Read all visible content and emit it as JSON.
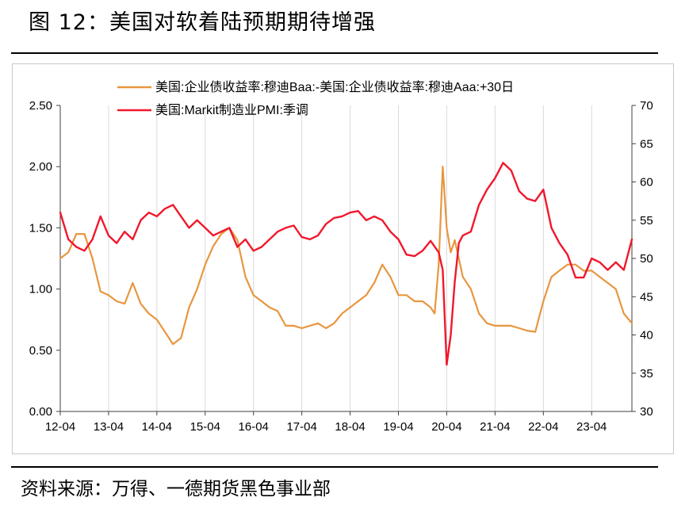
{
  "header": {
    "title": "图 12：美国对软着陆预期期待增强"
  },
  "footer": {
    "source": "资料来源：万得、一德期货黑色事业部"
  },
  "colors": {
    "spread": "#E8963F",
    "pmi": "#F0182C",
    "axis": "#404040"
  },
  "chart_data": {
    "type": "line",
    "title": "",
    "x_axis": {
      "tick_labels": [
        "12-04",
        "13-04",
        "14-04",
        "15-04",
        "16-04",
        "17-04",
        "18-04",
        "19-04",
        "20-04",
        "21-04",
        "22-04",
        "23-04"
      ],
      "range": [
        "2012-04",
        "2024-02"
      ]
    },
    "y_left": {
      "range": [
        0,
        2.5
      ],
      "ticks": [
        "0.00",
        "0.50",
        "1.00",
        "1.50",
        "2.00",
        "2.50"
      ]
    },
    "y_right": {
      "range": [
        30,
        70
      ],
      "ticks": [
        "30",
        "35",
        "40",
        "45",
        "50",
        "55",
        "60",
        "65",
        "70"
      ]
    },
    "legend": {
      "placement": "top-center"
    },
    "grid": {
      "vertical": true,
      "horizontal": false
    },
    "series": [
      {
        "name": "美国:企业债收益率:穆迪Baa:-美国:企业债收益率:穆迪Aaa:+30日",
        "axis": "left",
        "x": [
          "2012-04",
          "2012-06",
          "2012-08",
          "2012-10",
          "2012-12",
          "2013-02",
          "2013-04",
          "2013-06",
          "2013-08",
          "2013-10",
          "2013-12",
          "2014-02",
          "2014-04",
          "2014-06",
          "2014-08",
          "2014-10",
          "2014-12",
          "2015-02",
          "2015-04",
          "2015-06",
          "2015-08",
          "2015-10",
          "2015-12",
          "2016-02",
          "2016-04",
          "2016-06",
          "2016-08",
          "2016-10",
          "2016-12",
          "2017-02",
          "2017-04",
          "2017-06",
          "2017-08",
          "2017-10",
          "2017-12",
          "2018-02",
          "2018-04",
          "2018-06",
          "2018-08",
          "2018-10",
          "2018-12",
          "2019-02",
          "2019-04",
          "2019-06",
          "2019-08",
          "2019-10",
          "2019-12",
          "2020-01",
          "2020-02",
          "2020-03",
          "2020-04",
          "2020-05",
          "2020-06",
          "2020-07",
          "2020-08",
          "2020-10",
          "2020-12",
          "2021-02",
          "2021-04",
          "2021-06",
          "2021-08",
          "2021-10",
          "2021-12",
          "2022-02",
          "2022-04",
          "2022-06",
          "2022-08",
          "2022-10",
          "2022-12",
          "2023-02",
          "2023-04",
          "2023-06",
          "2023-08",
          "2023-10",
          "2023-12",
          "2024-02"
        ],
        "values": [
          1.25,
          1.3,
          1.45,
          1.45,
          1.25,
          0.98,
          0.95,
          0.9,
          0.88,
          1.05,
          0.88,
          0.8,
          0.75,
          0.65,
          0.55,
          0.6,
          0.85,
          1.0,
          1.2,
          1.35,
          1.45,
          1.5,
          1.4,
          1.1,
          0.95,
          0.9,
          0.85,
          0.82,
          0.7,
          0.7,
          0.68,
          0.7,
          0.72,
          0.68,
          0.72,
          0.8,
          0.85,
          0.9,
          0.95,
          1.05,
          1.2,
          1.1,
          0.95,
          0.95,
          0.9,
          0.9,
          0.85,
          0.8,
          1.2,
          2.0,
          1.5,
          1.3,
          1.4,
          1.25,
          1.1,
          1.0,
          0.8,
          0.72,
          0.7,
          0.7,
          0.7,
          0.68,
          0.66,
          0.65,
          0.9,
          1.1,
          1.15,
          1.2,
          1.2,
          1.15,
          1.15,
          1.1,
          1.05,
          1.0,
          0.8,
          0.72
        ]
      },
      {
        "name": "美国:Markit制造业PMI:季调",
        "axis": "right",
        "x": [
          "2012-04",
          "2012-06",
          "2012-08",
          "2012-10",
          "2012-12",
          "2013-02",
          "2013-04",
          "2013-06",
          "2013-08",
          "2013-10",
          "2013-12",
          "2014-02",
          "2014-04",
          "2014-06",
          "2014-08",
          "2014-10",
          "2014-12",
          "2015-02",
          "2015-04",
          "2015-06",
          "2015-08",
          "2015-10",
          "2015-12",
          "2016-02",
          "2016-04",
          "2016-06",
          "2016-08",
          "2016-10",
          "2016-12",
          "2017-02",
          "2017-04",
          "2017-06",
          "2017-08",
          "2017-10",
          "2017-12",
          "2018-02",
          "2018-04",
          "2018-06",
          "2018-08",
          "2018-10",
          "2018-12",
          "2019-02",
          "2019-04",
          "2019-06",
          "2019-08",
          "2019-10",
          "2019-12",
          "2020-02",
          "2020-03",
          "2020-04",
          "2020-05",
          "2020-06",
          "2020-07",
          "2020-08",
          "2020-10",
          "2020-12",
          "2021-02",
          "2021-04",
          "2021-06",
          "2021-08",
          "2021-10",
          "2021-12",
          "2022-02",
          "2022-04",
          "2022-06",
          "2022-08",
          "2022-10",
          "2022-12",
          "2023-02",
          "2023-04",
          "2023-06",
          "2023-08",
          "2023-10",
          "2023-12",
          "2024-02"
        ],
        "values": [
          56,
          52.5,
          51.5,
          51,
          52.5,
          55.5,
          53,
          52,
          53.5,
          52.5,
          55,
          56,
          55.5,
          56.5,
          57,
          55.5,
          54,
          55,
          54,
          53,
          53.5,
          54,
          51.5,
          52.5,
          51,
          51.5,
          52.5,
          53.5,
          54,
          54.3,
          52.8,
          52.5,
          53,
          54.5,
          55.3,
          55.5,
          56,
          56.2,
          55,
          55.5,
          55,
          53.5,
          52.5,
          50.5,
          50.3,
          51,
          52.3,
          50.8,
          48.5,
          36.1,
          40,
          47,
          52,
          53,
          53.5,
          57,
          59,
          60.5,
          62.5,
          61.5,
          58.8,
          57.8,
          57.5,
          59,
          54,
          52,
          50.5,
          47.5,
          47.5,
          50,
          49.5,
          48.5,
          49.5,
          48.5,
          52.5
        ]
      }
    ]
  }
}
